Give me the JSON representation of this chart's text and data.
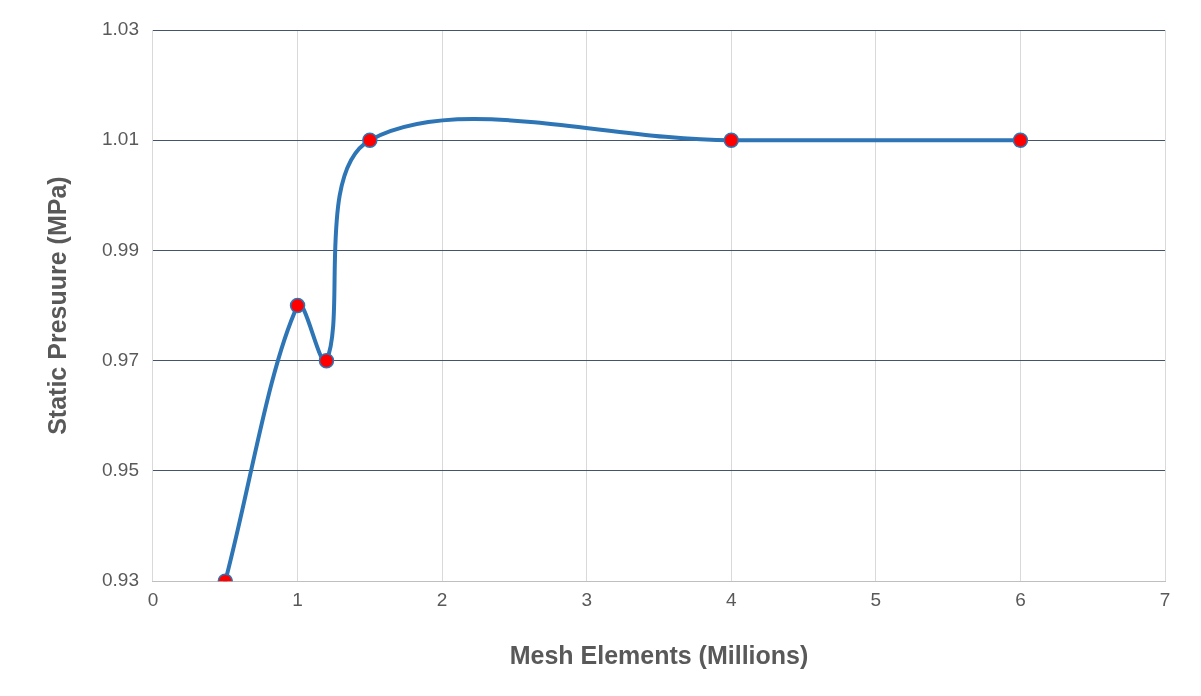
{
  "chart_data": {
    "type": "line",
    "xlabel": "Mesh Elements (Millions)",
    "ylabel": "Static Presuure (MPa)",
    "x": [
      0.5,
      1.0,
      1.2,
      1.5,
      4.0,
      6.0
    ],
    "series": [
      {
        "color": "#2e75b6",
        "colors": [
          "#ff0000",
          "#ff0000",
          "#ff0000",
          "#ff0000",
          "#ff0000",
          "#ff0000"
        ],
        "values": [
          0.93,
          0.98,
          0.97,
          1.01,
          1.01,
          1.01
        ]
      }
    ],
    "xlim": [
      0,
      7
    ],
    "xticks": [
      0,
      1,
      2,
      3,
      4,
      5,
      6,
      7
    ],
    "ylim": [
      0.93,
      1.03
    ],
    "yticks": [
      0.93,
      0.95,
      0.97,
      0.99,
      1.01,
      1.03
    ],
    "grid": true,
    "marker": "circle",
    "line_style": "solid",
    "legend": false
  }
}
